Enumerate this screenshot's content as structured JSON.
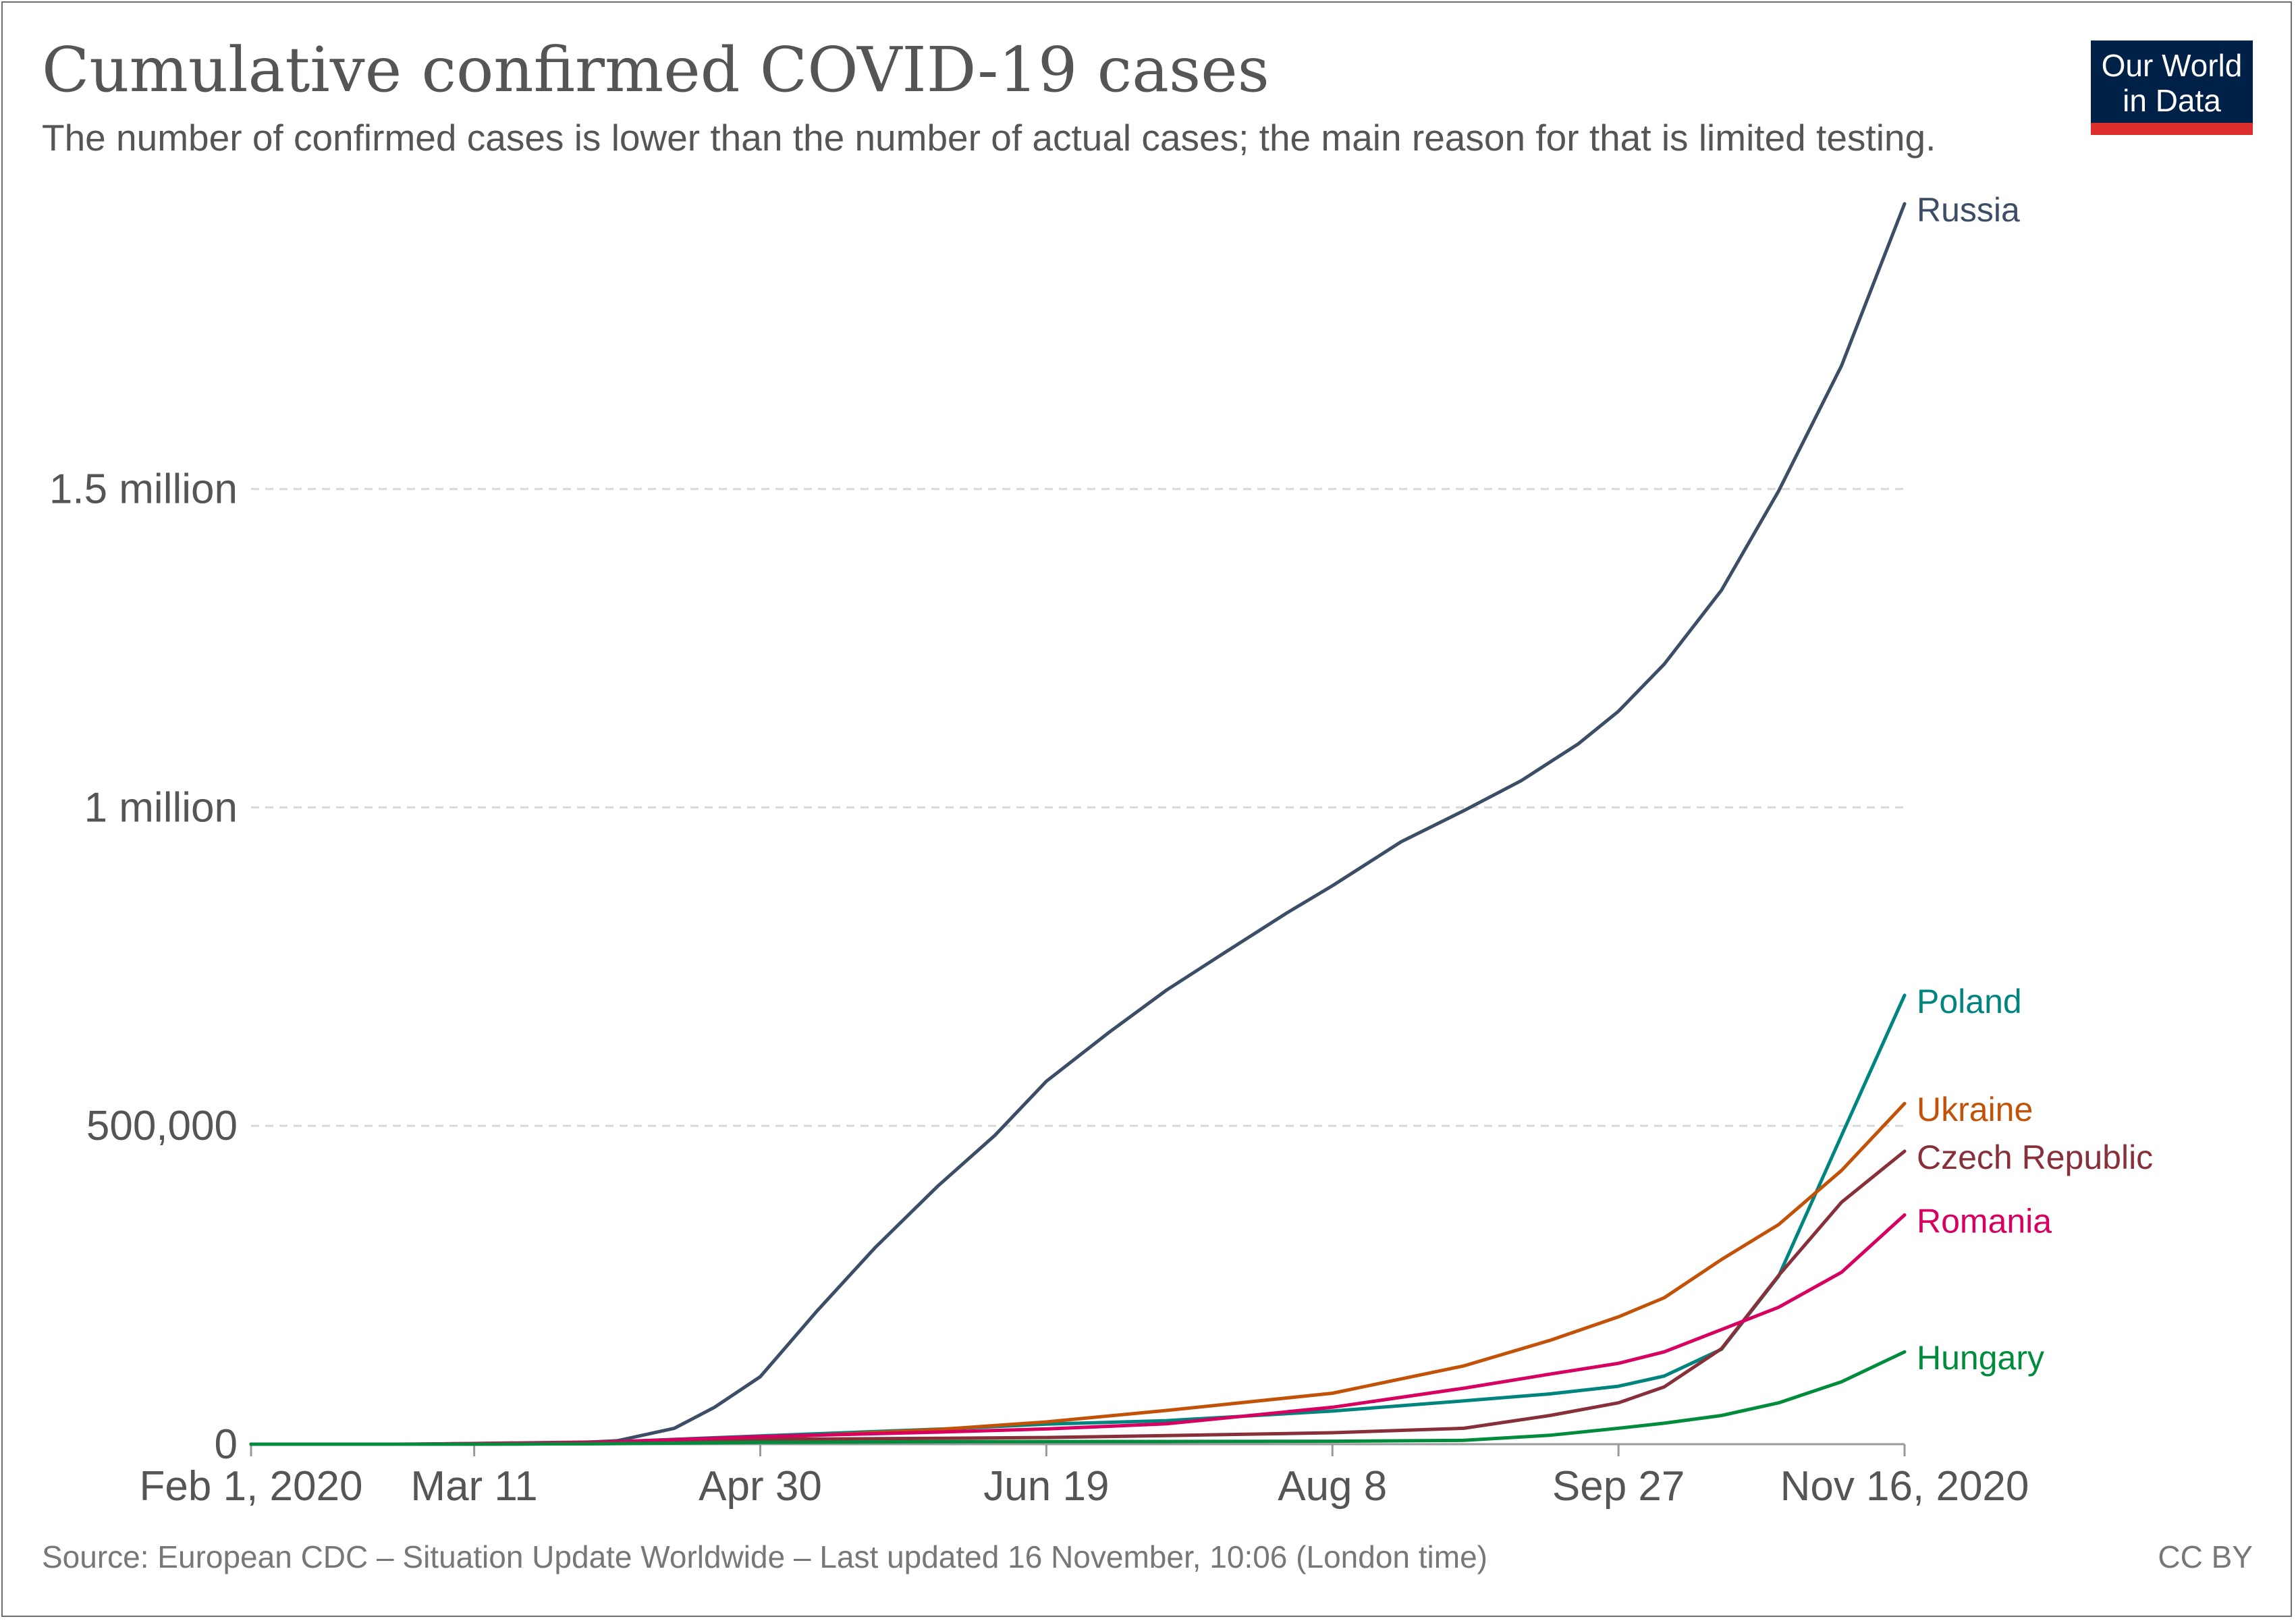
{
  "header": {
    "title": "Cumulative confirmed COVID-19 cases",
    "subtitle": "The number of confirmed cases is lower than the number of actual cases; the main reason for that is limited testing."
  },
  "logo": {
    "line1": "Our World",
    "line2": "in Data",
    "bg_color": "#002147",
    "bar_color": "#dc2f2c"
  },
  "footer": {
    "source": "Source: European CDC – Situation Update Worldwide – Last updated 16 November, 10:06 (London time)",
    "license": "CC BY"
  },
  "chart_data": {
    "type": "line",
    "title": "Cumulative confirmed COVID-19 cases",
    "subtitle": "The number of confirmed cases is lower than the number of actual cases; the main reason for that is limited testing.",
    "x_ticks": [
      {
        "date": "2020-02-01",
        "label": "Feb 1, 2020"
      },
      {
        "date": "2020-03-11",
        "label": "Mar 11"
      },
      {
        "date": "2020-04-30",
        "label": "Apr 30"
      },
      {
        "date": "2020-06-19",
        "label": "Jun 19"
      },
      {
        "date": "2020-08-08",
        "label": "Aug 8"
      },
      {
        "date": "2020-09-27",
        "label": "Sep 27"
      },
      {
        "date": "2020-11-16",
        "label": "Nov 16, 2020"
      }
    ],
    "xlim": [
      "2020-02-01",
      "2020-11-16"
    ],
    "y_ticks": [
      {
        "value": 0,
        "label": "0"
      },
      {
        "value": 500000,
        "label": "500,000"
      },
      {
        "value": 1000000,
        "label": "1 million"
      },
      {
        "value": 1500000,
        "label": "1.5 million"
      }
    ],
    "ylim": [
      0,
      1950000
    ],
    "grid": "horizontal dashed",
    "legend": "inline labels at line ends (right)",
    "series": [
      {
        "name": "Russia",
        "color": "#3c4e66",
        "points": [
          [
            "2020-02-01",
            0
          ],
          [
            "2020-03-11",
            20
          ],
          [
            "2020-03-25",
            650
          ],
          [
            "2020-04-05",
            5400
          ],
          [
            "2020-04-15",
            25000
          ],
          [
            "2020-04-22",
            58000
          ],
          [
            "2020-04-30",
            106000
          ],
          [
            "2020-05-10",
            210000
          ],
          [
            "2020-05-20",
            308000
          ],
          [
            "2020-05-31",
            405000
          ],
          [
            "2020-06-10",
            485000
          ],
          [
            "2020-06-19",
            570000
          ],
          [
            "2020-06-30",
            647000
          ],
          [
            "2020-07-10",
            713000
          ],
          [
            "2020-07-20",
            771000
          ],
          [
            "2020-07-31",
            834000
          ],
          [
            "2020-08-08",
            877000
          ],
          [
            "2020-08-20",
            946000
          ],
          [
            "2020-08-31",
            995000
          ],
          [
            "2020-09-10",
            1042000
          ],
          [
            "2020-09-20",
            1100000
          ],
          [
            "2020-09-27",
            1151000
          ],
          [
            "2020-10-05",
            1225000
          ],
          [
            "2020-10-15",
            1341000
          ],
          [
            "2020-10-25",
            1497000
          ],
          [
            "2020-11-05",
            1694000
          ],
          [
            "2020-11-16",
            1948000
          ]
        ]
      },
      {
        "name": "Poland",
        "color": "#00847e",
        "points": [
          [
            "2020-02-01",
            0
          ],
          [
            "2020-03-04",
            0
          ],
          [
            "2020-04-01",
            2500
          ],
          [
            "2020-04-30",
            13000
          ],
          [
            "2020-05-31",
            23500
          ],
          [
            "2020-06-19",
            31500
          ],
          [
            "2020-07-10",
            37000
          ],
          [
            "2020-08-08",
            52000
          ],
          [
            "2020-08-31",
            68000
          ],
          [
            "2020-09-15",
            79000
          ],
          [
            "2020-09-27",
            91000
          ],
          [
            "2020-10-05",
            107000
          ],
          [
            "2020-10-15",
            149000
          ],
          [
            "2020-10-25",
            264000
          ],
          [
            "2020-11-05",
            485000
          ],
          [
            "2020-11-16",
            705000
          ]
        ]
      },
      {
        "name": "Ukraine",
        "color": "#c15208",
        "points": [
          [
            "2020-02-01",
            0
          ],
          [
            "2020-03-04",
            0
          ],
          [
            "2020-04-01",
            800
          ],
          [
            "2020-04-30",
            10000
          ],
          [
            "2020-05-31",
            23000
          ],
          [
            "2020-06-19",
            35000
          ],
          [
            "2020-07-10",
            53000
          ],
          [
            "2020-08-08",
            80000
          ],
          [
            "2020-08-31",
            123000
          ],
          [
            "2020-09-15",
            163000
          ],
          [
            "2020-09-27",
            200000
          ],
          [
            "2020-10-05",
            230000
          ],
          [
            "2020-10-15",
            290000
          ],
          [
            "2020-10-25",
            345000
          ],
          [
            "2020-11-05",
            430000
          ],
          [
            "2020-11-16",
            535000
          ]
        ]
      },
      {
        "name": "Czech Republic",
        "color": "#883039",
        "points": [
          [
            "2020-02-01",
            0
          ],
          [
            "2020-03-01",
            3
          ],
          [
            "2020-04-01",
            3500
          ],
          [
            "2020-04-30",
            7600
          ],
          [
            "2020-05-31",
            9200
          ],
          [
            "2020-06-19",
            10500
          ],
          [
            "2020-07-10",
            13500
          ],
          [
            "2020-08-08",
            18000
          ],
          [
            "2020-08-31",
            25000
          ],
          [
            "2020-09-15",
            45000
          ],
          [
            "2020-09-27",
            65000
          ],
          [
            "2020-10-05",
            90000
          ],
          [
            "2020-10-15",
            150000
          ],
          [
            "2020-10-25",
            265000
          ],
          [
            "2020-11-05",
            380000
          ],
          [
            "2020-11-16",
            460000
          ]
        ]
      },
      {
        "name": "Romania",
        "color": "#d70060",
        "points": [
          [
            "2020-02-01",
            0
          ],
          [
            "2020-02-26",
            1
          ],
          [
            "2020-04-01",
            2500
          ],
          [
            "2020-04-30",
            12000
          ],
          [
            "2020-05-31",
            19000
          ],
          [
            "2020-06-19",
            24000
          ],
          [
            "2020-07-10",
            32000
          ],
          [
            "2020-08-08",
            58000
          ],
          [
            "2020-08-31",
            88000
          ],
          [
            "2020-09-15",
            110000
          ],
          [
            "2020-09-27",
            127000
          ],
          [
            "2020-10-05",
            145000
          ],
          [
            "2020-10-15",
            180000
          ],
          [
            "2020-10-25",
            215000
          ],
          [
            "2020-11-05",
            270000
          ],
          [
            "2020-11-16",
            360000
          ]
        ]
      },
      {
        "name": "Hungary",
        "color": "#008c3c",
        "points": [
          [
            "2020-02-01",
            0
          ],
          [
            "2020-03-04",
            0
          ],
          [
            "2020-04-01",
            600
          ],
          [
            "2020-04-30",
            2900
          ],
          [
            "2020-05-31",
            3900
          ],
          [
            "2020-06-19",
            4100
          ],
          [
            "2020-07-10",
            4200
          ],
          [
            "2020-08-08",
            4700
          ],
          [
            "2020-08-31",
            6000
          ],
          [
            "2020-09-15",
            14000
          ],
          [
            "2020-09-27",
            25000
          ],
          [
            "2020-10-05",
            33000
          ],
          [
            "2020-10-15",
            45000
          ],
          [
            "2020-10-25",
            65000
          ],
          [
            "2020-11-05",
            98000
          ],
          [
            "2020-11-16",
            145000
          ]
        ]
      }
    ]
  }
}
